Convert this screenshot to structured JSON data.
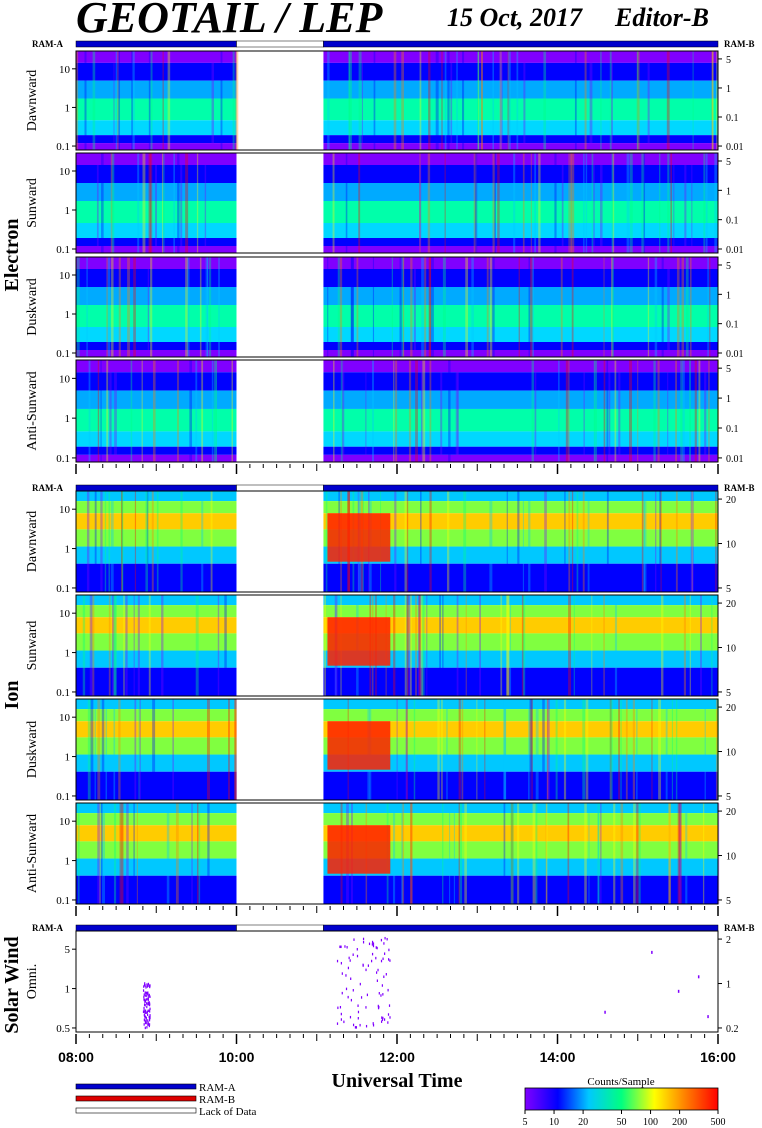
{
  "header": {
    "title": "GEOTAIL / LEP",
    "date": "15 Oct, 2017",
    "editor": "Editor-B"
  },
  "status_labels": {
    "left": "RAM-A",
    "right": "RAM-B"
  },
  "groups": [
    {
      "id": "electron",
      "label": "Electron"
    },
    {
      "id": "ion",
      "label": "Ion"
    },
    {
      "id": "solarwind",
      "label": "Solar Wind"
    }
  ],
  "legend": {
    "items": [
      "RAM-A",
      "RAM-B",
      "Lack of Data"
    ],
    "colors": {
      "ram_a": "#0000cc",
      "ram_b": "#dd0000",
      "lack": "#ffffff"
    }
  },
  "colorbar": {
    "title": "Counts/Sample",
    "ticks": [
      "5",
      "10",
      "20",
      "50",
      "100",
      "200",
      "500"
    ]
  },
  "chart_data": {
    "type": "heatmap",
    "xlabel": "Universal Time",
    "x_ticks": [
      "08:00",
      "10:00",
      "12:00",
      "14:00",
      "16:00"
    ],
    "xlim": [
      "08:00",
      "16:00"
    ],
    "data_gap": [
      "10:00",
      "11:05"
    ],
    "mode_intervals": [
      {
        "mode": "RAM-A",
        "from": "08:00",
        "to": "10:00"
      },
      {
        "mode": "Lack of Data",
        "from": "10:00",
        "to": "11:05"
      },
      {
        "mode": "RAM-A",
        "from": "11:05",
        "to": "16:00"
      }
    ],
    "colorscale": [
      "#8000ff",
      "#0000ff",
      "#00c8ff",
      "#00ff80",
      "#ffff00",
      "#ff8000",
      "#ff0000"
    ],
    "panels": [
      {
        "group": "electron",
        "ylabel": "Dawnward",
        "left_ticks": [
          "10",
          "1",
          "0.1"
        ],
        "right_ticks": [
          "5",
          "1",
          "0.1",
          "0.01"
        ]
      },
      {
        "group": "electron",
        "ylabel": "Sunward",
        "left_ticks": [
          "10",
          "1",
          "0.1"
        ],
        "right_ticks": [
          "5",
          "1",
          "0.1",
          "0.01"
        ]
      },
      {
        "group": "electron",
        "ylabel": "Duskward",
        "left_ticks": [
          "10",
          "1",
          "0.1"
        ],
        "right_ticks": [
          "5",
          "1",
          "0.1",
          "0.01"
        ]
      },
      {
        "group": "electron",
        "ylabel": "Anti-Sunward",
        "left_ticks": [
          "10",
          "1",
          "0.1"
        ],
        "right_ticks": [
          "5",
          "1",
          "0.1",
          "0.01"
        ]
      },
      {
        "group": "ion",
        "ylabel": "Dawnward",
        "left_ticks": [
          "10",
          "1",
          "0.1"
        ],
        "right_ticks": [
          "20",
          "10",
          "5"
        ]
      },
      {
        "group": "ion",
        "ylabel": "Sunward",
        "left_ticks": [
          "10",
          "1",
          "0.1"
        ],
        "right_ticks": [
          "20",
          "10",
          "5"
        ]
      },
      {
        "group": "ion",
        "ylabel": "Duskward",
        "left_ticks": [
          "10",
          "1",
          "0.1"
        ],
        "right_ticks": [
          "20",
          "10",
          "5"
        ]
      },
      {
        "group": "ion",
        "ylabel": "Anti-Sunward",
        "left_ticks": [
          "10",
          "1",
          "0.1"
        ],
        "right_ticks": [
          "20",
          "10",
          "5"
        ]
      },
      {
        "group": "solarwind",
        "ylabel": "Omni.",
        "left_ticks": [
          "5",
          "1",
          "0.5"
        ],
        "right_ticks": [
          "2",
          "1",
          "0.2"
        ]
      }
    ]
  }
}
